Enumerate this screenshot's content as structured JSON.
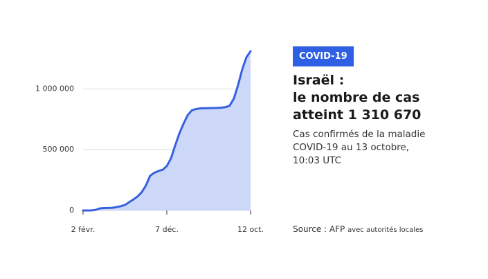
{
  "chart_data": {
    "type": "area",
    "badge": "COVID-19",
    "title": [
      "Israël :",
      "le nombre de cas",
      "atteint 1 310 670"
    ],
    "subtitle": [
      "Cas confirmés de la maladie",
      "COVID-19 au 13 octobre,",
      "10:03 UTC"
    ],
    "source": [
      "Source : AFP",
      "avec autorités locales"
    ],
    "categories": [
      "2 févr.",
      null,
      null,
      null,
      null,
      null,
      null,
      null,
      null,
      null,
      null,
      null,
      null,
      null,
      null,
      null,
      null,
      null,
      null,
      null,
      "7 déc.",
      null,
      null,
      null,
      null,
      null,
      null,
      null,
      null,
      null,
      null,
      null,
      null,
      null,
      null,
      null,
      null,
      null,
      null,
      null,
      "12 oct."
    ],
    "values": [
      0,
      0,
      0,
      5000,
      17000,
      20000,
      21000,
      22000,
      28000,
      35000,
      45000,
      68000,
      90000,
      115000,
      150000,
      205000,
      285000,
      310000,
      325000,
      335000,
      365000,
      430000,
      535000,
      635000,
      715000,
      785000,
      825000,
      835000,
      840000,
      841000,
      842000,
      843000,
      844000,
      846000,
      850000,
      862000,
      920000,
      1030000,
      1160000,
      1260000,
      1310670
    ],
    "color": "#3560e0",
    "fill": "#cdd7f8",
    "ylim": [
      0,
      1390000
    ],
    "yticks": [
      0,
      {
        "value": 500000,
        "label": "500 000"
      },
      {
        "value": 1000000,
        "label": "1 000 000"
      }
    ],
    "grid": true
  }
}
